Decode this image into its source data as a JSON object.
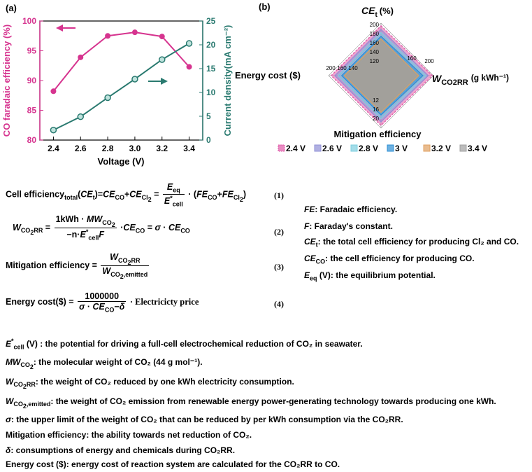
{
  "panel_a": {
    "label": "(a)",
    "left_axis_title": "CO faradaic efficiency (%)",
    "right_axis_title": "Current density(mA cm⁻²)",
    "x_axis_title": "Voltage (V)",
    "colors": {
      "fe": "#d6348f",
      "cd": "#2a7a70",
      "left_axis": "#d6348f",
      "right_axis": "#2a7a70"
    }
  },
  "panel_b": {
    "label": "(b)",
    "axes": {
      "top": "CE",
      "top_sub": "t",
      "top_unit": "(%)",
      "left": "Energy cost ($)",
      "right_main": "W",
      "right_sub": "CO2RR",
      "right_unit": "(g kWh⁻¹)",
      "bottom": "Mitigation efficiency"
    },
    "legend": [
      "2.4 V",
      "2.6 V",
      "2.8 V",
      "3 V",
      "3.2 V",
      "3.4 V"
    ]
  },
  "chart_data": [
    {
      "type": "scatter",
      "title": "",
      "xlabel": "Voltage (V)",
      "x": [
        2.4,
        2.6,
        2.8,
        3.0,
        3.2,
        3.4
      ],
      "xlim": [
        2.3,
        3.5
      ],
      "xticks": [
        "2.4",
        "2.6",
        "2.8",
        "3.0",
        "3.2",
        "3.4"
      ],
      "ylabel_left": "CO faradaic efficiency (%)",
      "ylim_left": [
        80,
        100
      ],
      "yticks_left": [
        "80",
        "85",
        "90",
        "95",
        "100"
      ],
      "ylabel_right": "Current density(mA cm⁻²)",
      "ylim_right": [
        0,
        25
      ],
      "yticks_right": [
        "0",
        "5",
        "10",
        "15",
        "20",
        "25"
      ],
      "series": [
        {
          "axis": "left",
          "values": [
            88.2,
            93.9,
            97.5,
            98.1,
            97.4,
            92.3
          ]
        },
        {
          "axis": "right",
          "values": [
            2.1,
            4.9,
            8.9,
            12.8,
            16.9,
            20.3
          ]
        }
      ],
      "grid": false
    },
    {
      "type": "radar",
      "axes": [
        "CE_t (%)",
        "W_CO2RR (g kWh⁻¹)",
        "Mitigation efficiency",
        "Energy cost ($)"
      ],
      "scale_ticks": {
        "top": [
          "120",
          "140",
          "160",
          "180",
          "200"
        ],
        "right": [
          "160",
          "200"
        ],
        "left": [
          "200",
          "160",
          "140"
        ],
        "bottom": [
          "12",
          "16",
          "20"
        ]
      },
      "series": [
        {
          "name": "2.4 V",
          "values": [
            0.95,
            0.98,
            0.95,
            0.95
          ]
        },
        {
          "name": "2.6 V",
          "values": [
            0.88,
            0.9,
            0.88,
            0.88
          ]
        },
        {
          "name": "2.8 V",
          "values": [
            0.82,
            0.86,
            0.82,
            0.82
          ]
        },
        {
          "name": "3 V",
          "values": [
            0.75,
            0.8,
            0.75,
            0.75
          ]
        },
        {
          "name": "3.2 V",
          "values": [
            0.7,
            0.72,
            0.7,
            0.7
          ]
        },
        {
          "name": "3.4 V",
          "values": [
            0.64,
            0.66,
            0.64,
            0.64
          ]
        }
      ],
      "colors": [
        "#e05aa8",
        "#8f8fd6",
        "#7ecfe0",
        "#2e8fd4",
        "#e0a060",
        "#a0a0a0"
      ]
    }
  ],
  "equations": {
    "eq1_lhs": "Cell efficiency",
    "eq1_lhs_sub": "total",
    "eq1_num": "(1)",
    "eq2_num": "(2)",
    "eq3_lhs": "Mitigation efficiency =",
    "eq3_num": "(3)",
    "eq4_lhs": "Energy cost($) =",
    "eq4_frac_num": "1000000",
    "eq4_tail": "· Electricicty price",
    "eq4_num": "(4)"
  },
  "definitions": [
    {
      "sym": "FE",
      "text": ": Faradaic  efficiency."
    },
    {
      "sym": "F",
      "text": ": Faraday's constant."
    },
    {
      "sym": "CE",
      "sub": "t",
      "text": ": the total cell efficiency for producing Cl₂ and CO."
    },
    {
      "sym": "CE",
      "sub": "CO",
      "text": ": the cell efficiency for producing CO."
    },
    {
      "sym": "E",
      "sub": "eq",
      "text": " (V): the equilibrium potential."
    }
  ],
  "notes": {
    "n1": " (V) : the potential for driving  a full-cell electrochemical  reduction of CO₂ in seawater.",
    "n2": ": the molecular weight of CO₂ (44 g mol⁻¹).",
    "n3": ": the weight of CO₂ reduced by one  kWh electricity consumption.",
    "n4": ":  the weight of CO₂ emission from renewable energy power-generating technology  towards  producing one kWh.",
    "n5": ":  the upper limit of the weight of CO₂ that can be reduced  by per kWh  consumption via the CO₂RR.",
    "n6": "Mitigation efficiency: the ability towards net reduction of CO₂.",
    "n7": ": consumptions of energy and chemicals during CO₂RR.",
    "n8": "Energy cost ($): energy cost of reaction system are calculated for the CO₂RR to CO."
  }
}
